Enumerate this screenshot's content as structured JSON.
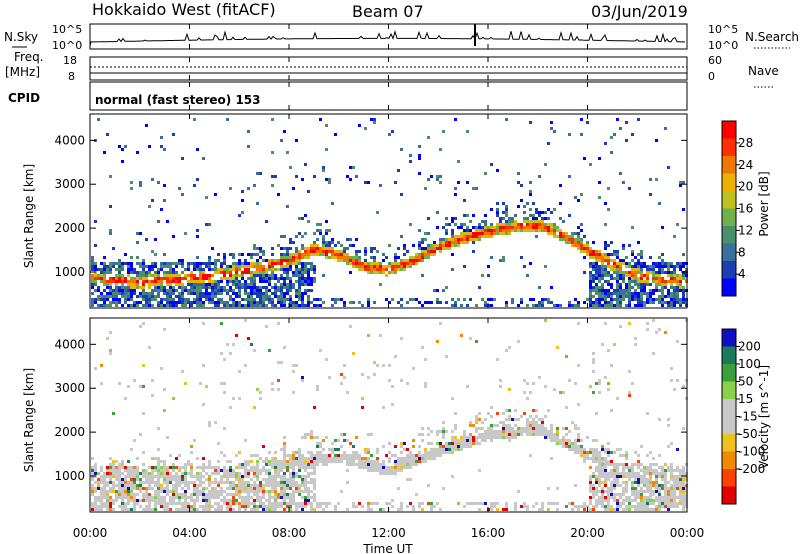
{
  "header": {
    "station": "Hokkaido West (fitACF)",
    "beam": "Beam 07",
    "date": "03/Jun/2019"
  },
  "top_panels": {
    "nsky_label": "N.Sky",
    "nsky_ticks": [
      "10^5",
      "10^0"
    ],
    "nsearch_label": "N.Search",
    "nsearch_ticks": [
      "10^5",
      "10^0"
    ],
    "freq_label": "Freq.",
    "freq_unit": "[MHz]",
    "freq_ticks": [
      "18",
      "8"
    ],
    "nave_label": "Nave",
    "nave_ticks": [
      "60",
      "0"
    ],
    "cpid_label": "CPID",
    "cpid_text": "normal (fast stereo) 153"
  },
  "time_axis": {
    "label": "Time UT",
    "ticks": [
      "00:00",
      "04:00",
      "08:00",
      "12:00",
      "16:00",
      "20:00",
      "00:00"
    ]
  },
  "chart_data": [
    {
      "type": "heatmap",
      "quantity": "power",
      "ylabel": "Slant Range [km]",
      "y_ticks": [
        1000,
        2000,
        3000,
        4000
      ],
      "ylim": [
        180,
        4600
      ],
      "xlim_hours": [
        0,
        24
      ],
      "colorbar": {
        "label": "Power [dB]",
        "ticks": [
          4,
          8,
          12,
          16,
          20,
          24,
          28
        ],
        "range": [
          0,
          32
        ],
        "colors": [
          "#0000ff",
          "#1a3fb0",
          "#3a6f9a",
          "#4a8e6a",
          "#6fb04a",
          "#c0c020",
          "#f0b000",
          "#f07800",
          "#ff3000",
          "#ff0000"
        ]
      },
      "main_band_km": [
        [
          0.0,
          900
        ],
        [
          1.0,
          850
        ],
        [
          2.0,
          800
        ],
        [
          3.0,
          850
        ],
        [
          4.0,
          900
        ],
        [
          5.0,
          950
        ],
        [
          6.0,
          1050
        ],
        [
          7.0,
          1150
        ],
        [
          8.0,
          1300
        ],
        [
          9.0,
          1550
        ],
        [
          10.0,
          1400
        ],
        [
          11.0,
          1150
        ],
        [
          12.0,
          1080
        ],
        [
          13.0,
          1300
        ],
        [
          14.0,
          1600
        ],
        [
          15.0,
          1800
        ],
        [
          16.0,
          1950
        ],
        [
          17.0,
          2050
        ],
        [
          18.0,
          2100
        ],
        [
          19.0,
          1850
        ],
        [
          20.0,
          1500
        ],
        [
          21.0,
          1200
        ],
        [
          22.0,
          950
        ],
        [
          23.0,
          850
        ],
        [
          24.0,
          800
        ]
      ]
    },
    {
      "type": "heatmap",
      "quantity": "velocity",
      "ylabel": "Slant Range [km]",
      "y_ticks": [
        1000,
        2000,
        3000,
        4000
      ],
      "ylim": [
        180,
        4600
      ],
      "xlim_hours": [
        0,
        24
      ],
      "colorbar": {
        "label": "Velocity [m s^-1]",
        "ticks": [
          200,
          100,
          50,
          15,
          -15,
          -50,
          -100,
          -200
        ],
        "colors": [
          "#1010c0",
          "#1a7a5a",
          "#3aa03a",
          "#8ad04a",
          "#c8c8c8",
          "#c8c8c8",
          "#f0c020",
          "#f08a00",
          "#ff4000",
          "#e00000"
        ]
      },
      "main_band_km": [
        [
          0.0,
          900
        ],
        [
          2.0,
          850
        ],
        [
          4.0,
          950
        ],
        [
          6.0,
          1050
        ],
        [
          8.0,
          1300
        ],
        [
          10.0,
          1450
        ],
        [
          12.0,
          1150
        ],
        [
          14.0,
          1600
        ],
        [
          16.0,
          1950
        ],
        [
          18.0,
          2100
        ],
        [
          20.0,
          1500
        ],
        [
          22.0,
          1000
        ],
        [
          24.0,
          850
        ]
      ]
    }
  ]
}
